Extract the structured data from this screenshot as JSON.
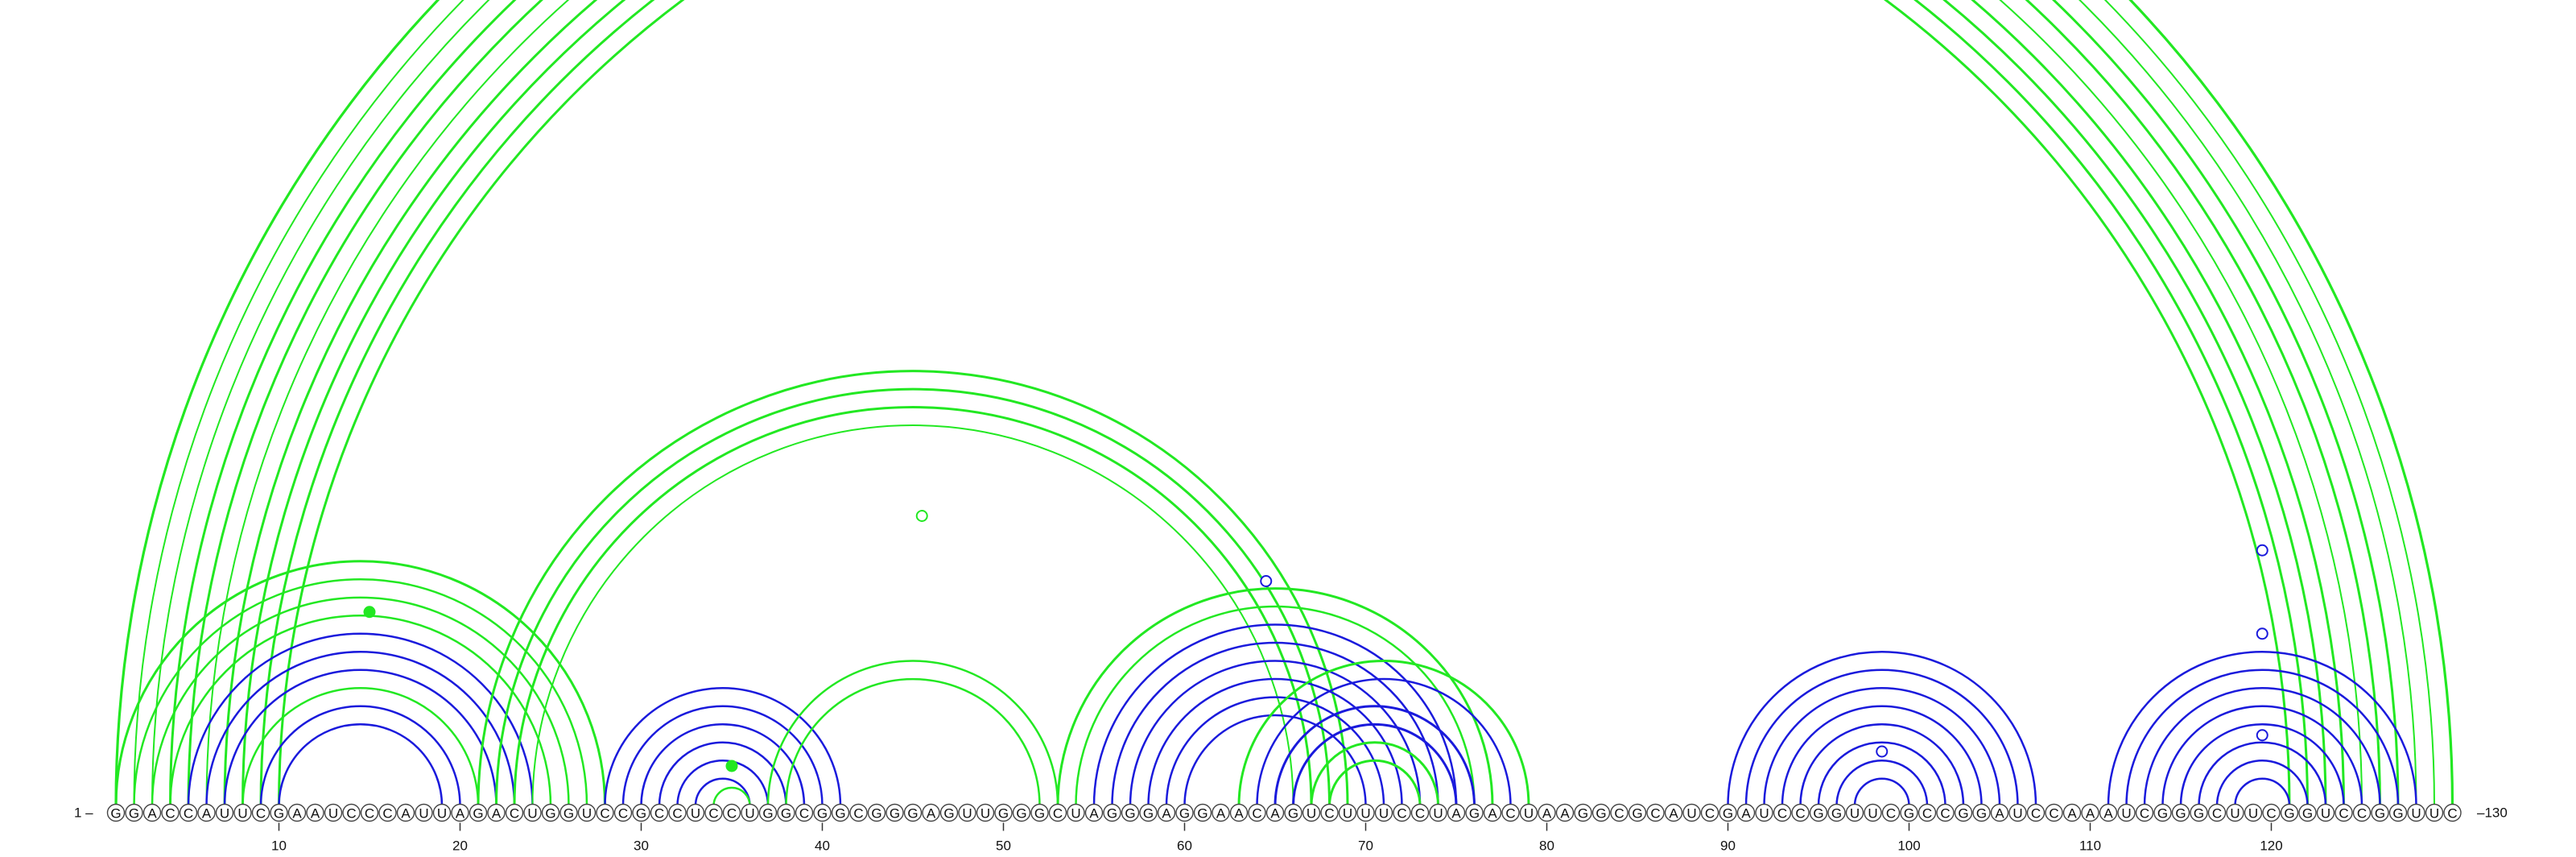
{
  "sequence": "GGACCAUUCGAAUCCCAUUAGACUGGUCCGCCUCCUGGCGGCGGGAGUUGGGCUAGGGAGGAACAGUCUUUCCUAGACUAAGGCGCAUCGAUCCGGUUCGCCGGAUCCAAAUCGGGCUUCGGUCCGGUUC",
  "labels": {
    "start": "1 –",
    "end": "–130"
  },
  "ticks": [
    {
      "pos": 10,
      "label": "10"
    },
    {
      "pos": 20,
      "label": "20"
    },
    {
      "pos": 30,
      "label": "30"
    },
    {
      "pos": 40,
      "label": "40"
    },
    {
      "pos": 50,
      "label": "50"
    },
    {
      "pos": 60,
      "label": "60"
    },
    {
      "pos": 70,
      "label": "70"
    },
    {
      "pos": 80,
      "label": "80"
    },
    {
      "pos": 90,
      "label": "90"
    },
    {
      "pos": 100,
      "label": "100"
    },
    {
      "pos": 110,
      "label": "110"
    },
    {
      "pos": 120,
      "label": "120"
    }
  ],
  "colors": {
    "green": "#22e822",
    "blue": "#1a1adc"
  },
  "arcs": [
    {
      "i": 1,
      "j": 130,
      "c": "green",
      "w": 3.2
    },
    {
      "i": 2,
      "j": 129,
      "c": "green",
      "w": 2
    },
    {
      "i": 3,
      "j": 128,
      "c": "green",
      "w": 2
    },
    {
      "i": 4,
      "j": 127,
      "c": "green",
      "w": 3
    },
    {
      "i": 5,
      "j": 126,
      "c": "green",
      "w": 3
    },
    {
      "i": 6,
      "j": 125,
      "c": "green",
      "w": 2
    },
    {
      "i": 7,
      "j": 124,
      "c": "green",
      "w": 3
    },
    {
      "i": 8,
      "j": 123,
      "c": "green",
      "w": 3
    },
    {
      "i": 9,
      "j": 122,
      "c": "green",
      "w": 3
    },
    {
      "i": 10,
      "j": 121,
      "c": "green",
      "w": 3
    },
    {
      "i": 1,
      "j": 28,
      "c": "green",
      "w": 3
    },
    {
      "i": 2,
      "j": 27,
      "c": "green",
      "w": 2.5
    },
    {
      "i": 3,
      "j": 26,
      "c": "green",
      "w": 2.5
    },
    {
      "i": 4,
      "j": 25,
      "c": "green",
      "w": 2.5
    },
    {
      "i": 5,
      "j": 24,
      "c": "blue",
      "w": 2.5
    },
    {
      "i": 6,
      "j": 23,
      "c": "blue",
      "w": 2.5
    },
    {
      "i": 7,
      "j": 22,
      "c": "blue",
      "w": 2.5
    },
    {
      "i": 8,
      "j": 21,
      "c": "green",
      "w": 2.5
    },
    {
      "i": 9,
      "j": 20,
      "c": "blue",
      "w": 2.5
    },
    {
      "i": 10,
      "j": 19,
      "c": "blue",
      "w": 2.5
    },
    {
      "i": 21,
      "j": 69,
      "c": "green",
      "w": 3
    },
    {
      "i": 22,
      "j": 68,
      "c": "green",
      "w": 3
    },
    {
      "i": 23,
      "j": 67,
      "c": "green",
      "w": 3
    },
    {
      "i": 24,
      "j": 66,
      "c": "green",
      "w": 2
    },
    {
      "i": 28,
      "j": 41,
      "c": "blue",
      "w": 2.5
    },
    {
      "i": 29,
      "j": 40,
      "c": "blue",
      "w": 2.5
    },
    {
      "i": 30,
      "j": 39,
      "c": "blue",
      "w": 2.5
    },
    {
      "i": 31,
      "j": 38,
      "c": "blue",
      "w": 2.5
    },
    {
      "i": 32,
      "j": 37,
      "c": "blue",
      "w": 2.5
    },
    {
      "i": 33,
      "j": 36,
      "c": "blue",
      "w": 2.5
    },
    {
      "i": 34,
      "j": 36,
      "c": "green",
      "w": 2.5
    },
    {
      "i": 37,
      "j": 53,
      "c": "green",
      "w": 2.5
    },
    {
      "i": 38,
      "j": 52,
      "c": "green",
      "w": 2.5
    },
    {
      "i": 53,
      "j": 77,
      "c": "green",
      "w": 3
    },
    {
      "i": 54,
      "j": 76,
      "c": "green",
      "w": 2.5
    },
    {
      "i": 55,
      "j": 75,
      "c": "blue",
      "w": 2.5
    },
    {
      "i": 56,
      "j": 74,
      "c": "blue",
      "w": 2.5
    },
    {
      "i": 57,
      "j": 73,
      "c": "blue",
      "w": 2.5
    },
    {
      "i": 58,
      "j": 72,
      "c": "blue",
      "w": 2.5
    },
    {
      "i": 59,
      "j": 71,
      "c": "blue",
      "w": 2.5
    },
    {
      "i": 60,
      "j": 70,
      "c": "blue",
      "w": 2.5
    },
    {
      "i": 63,
      "j": 79,
      "c": "green",
      "w": 3
    },
    {
      "i": 64,
      "j": 78,
      "c": "blue",
      "w": 2.5
    },
    {
      "i": 65,
      "j": 76,
      "c": "blue",
      "w": 3
    },
    {
      "i": 66,
      "j": 75,
      "c": "blue",
      "w": 3
    },
    {
      "i": 67,
      "j": 74,
      "c": "green",
      "w": 3
    },
    {
      "i": 68,
      "j": 73,
      "c": "green",
      "w": 3
    },
    {
      "i": 90,
      "j": 107,
      "c": "blue",
      "w": 2.5
    },
    {
      "i": 91,
      "j": 106,
      "c": "blue",
      "w": 2.5
    },
    {
      "i": 92,
      "j": 105,
      "c": "blue",
      "w": 2.5
    },
    {
      "i": 93,
      "j": 104,
      "c": "blue",
      "w": 2.5
    },
    {
      "i": 94,
      "j": 103,
      "c": "blue",
      "w": 2.5
    },
    {
      "i": 95,
      "j": 102,
      "c": "blue",
      "w": 2.5
    },
    {
      "i": 96,
      "j": 101,
      "c": "blue",
      "w": 2.5
    },
    {
      "i": 97,
      "j": 100,
      "c": "blue",
      "w": 2.5
    },
    {
      "i": 111,
      "j": 128,
      "c": "blue",
      "w": 2.5
    },
    {
      "i": 112,
      "j": 127,
      "c": "blue",
      "w": 2.5
    },
    {
      "i": 113,
      "j": 126,
      "c": "blue",
      "w": 2.5
    },
    {
      "i": 114,
      "j": 125,
      "c": "blue",
      "w": 2.5
    },
    {
      "i": 115,
      "j": 124,
      "c": "blue",
      "w": 2.5
    },
    {
      "i": 116,
      "j": 123,
      "c": "blue",
      "w": 2.5
    },
    {
      "i": 117,
      "j": 122,
      "c": "blue",
      "w": 2.5
    },
    {
      "i": 118,
      "j": 121,
      "c": "blue",
      "w": 2.5
    }
  ],
  "markers": [
    {
      "pos": 65.5,
      "level": 130,
      "c": "green",
      "filled": false
    },
    {
      "pos": 15,
      "level": 10.7,
      "c": "green",
      "filled": true
    },
    {
      "pos": 45.5,
      "level": 16,
      "c": "green",
      "filled": false
    },
    {
      "pos": 35,
      "level": 2.2,
      "c": "green",
      "filled": true
    },
    {
      "pos": 64.5,
      "level": 12.4,
      "c": "blue",
      "filled": false
    },
    {
      "pos": 98.5,
      "level": 3.0,
      "c": "blue",
      "filled": false
    },
    {
      "pos": 119.5,
      "level": 14.1,
      "c": "blue",
      "filled": false
    },
    {
      "pos": 119.5,
      "level": 9.5,
      "c": "blue",
      "filled": false
    },
    {
      "pos": 119.5,
      "level": 3.9,
      "c": "blue",
      "filled": false
    }
  ]
}
